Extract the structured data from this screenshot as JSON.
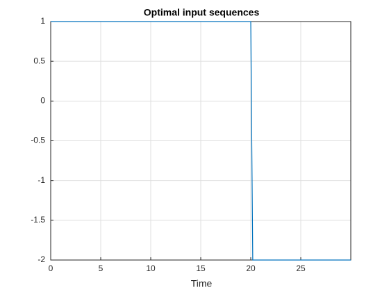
{
  "chart_data": {
    "type": "line",
    "title": "Optimal input sequences",
    "x_label": "Time",
    "x": [
      0,
      20,
      20.2,
      30
    ],
    "series": [
      {
        "color": "#0072bd",
        "values": [
          1,
          1,
          -2,
          -2
        ]
      }
    ],
    "xlim": [
      0,
      30
    ],
    "xticks": [
      0,
      5,
      10,
      15,
      20,
      25
    ],
    "ylim": [
      -2,
      1
    ],
    "yticks": [
      -2,
      -1.5,
      -1,
      -0.5,
      0,
      0.5,
      1
    ],
    "grid": true
  }
}
